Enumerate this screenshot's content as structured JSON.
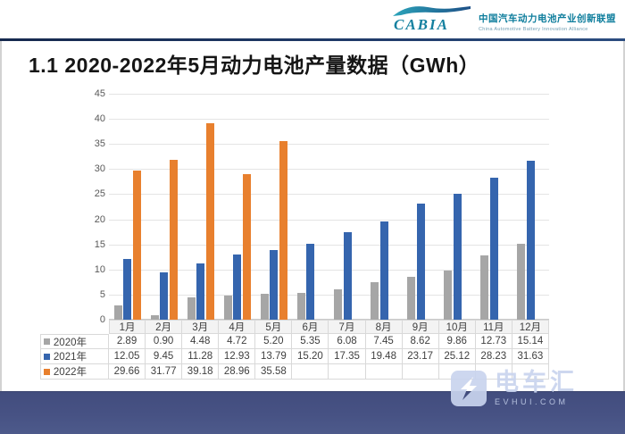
{
  "header": {
    "brand": "CABIA",
    "org_cn": "中国汽车动力电池产业创新联盟",
    "org_en": "China Automotive Battery Innovation Alliance"
  },
  "title": "1.1 2020-2022年5月动力电池产量数据（GWh）",
  "chart_data": {
    "type": "bar",
    "title": "2020-2022年5月动力电池产量数据（GWh）",
    "categories": [
      "1月",
      "2月",
      "3月",
      "4月",
      "5月",
      "6月",
      "7月",
      "8月",
      "9月",
      "10月",
      "11月",
      "12月"
    ],
    "series": [
      {
        "name": "2020年",
        "color": "#a6a6a6",
        "values": [
          2.89,
          0.9,
          4.48,
          4.72,
          5.2,
          5.35,
          6.08,
          7.45,
          8.62,
          9.86,
          12.73,
          15.14
        ]
      },
      {
        "name": "2021年",
        "color": "#3565ae",
        "values": [
          12.05,
          9.45,
          11.28,
          12.93,
          13.79,
          15.2,
          17.35,
          19.48,
          23.17,
          25.12,
          28.23,
          31.63
        ]
      },
      {
        "name": "2022年",
        "color": "#e8802e",
        "values": [
          29.66,
          31.77,
          39.18,
          28.96,
          35.58
        ]
      }
    ],
    "xlabel": "",
    "ylabel": "",
    "ylim": [
      0,
      45
    ],
    "ytick_step": 5,
    "grid": true,
    "legend_position": "data-table-left",
    "data_table": true,
    "value_decimals": 2
  },
  "watermark": {
    "cn": "电车汇",
    "site": "EVHUI.COM"
  }
}
